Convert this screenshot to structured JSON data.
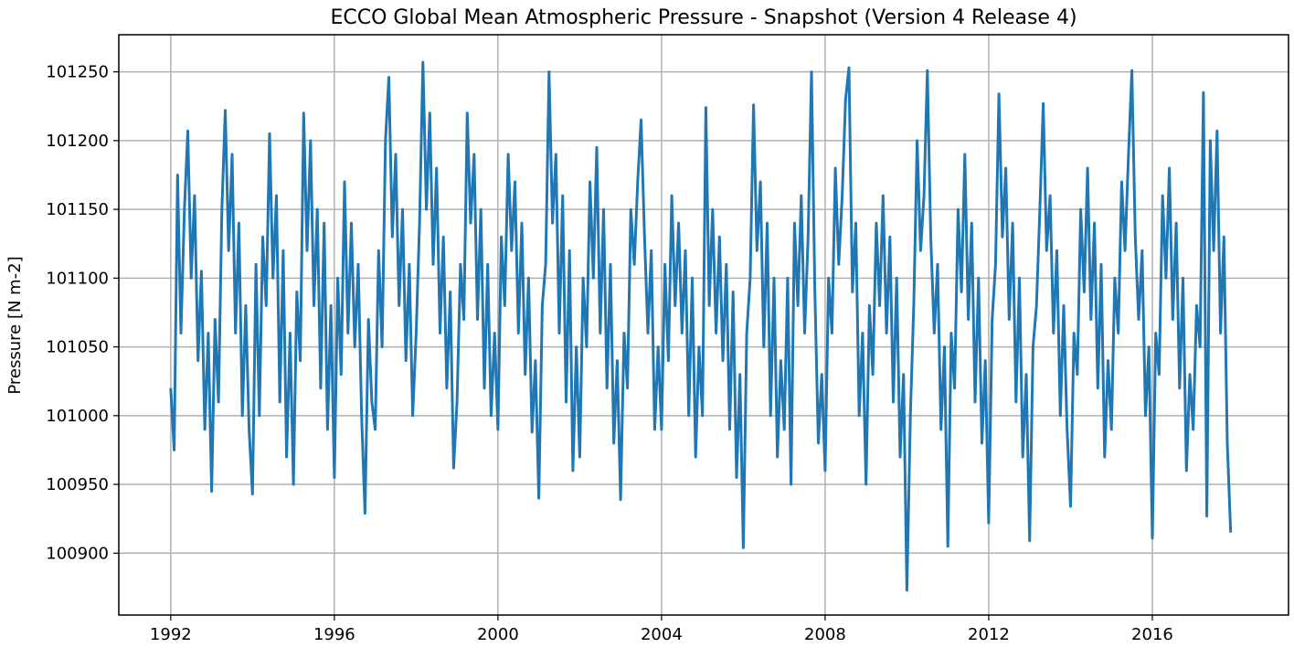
{
  "chart_data": {
    "type": "line",
    "title": "ECCO Global Mean Atmospheric Pressure - Snapshot (Version 4 Release 4)",
    "xlabel": "",
    "ylabel": "Pressure [N m-2]",
    "xlim": [
      1990.73,
      2019.33
    ],
    "ylim": [
      100855,
      101277
    ],
    "x_ticks": [
      "1992",
      "1996",
      "2000",
      "2004",
      "2008",
      "2012",
      "2016"
    ],
    "y_ticks": [
      "100900",
      "100950",
      "101000",
      "101050",
      "101100",
      "101150",
      "101200",
      "101250"
    ],
    "grid": true,
    "line_color": "#1f77b4",
    "series": [
      {
        "year": 1992,
        "monthly": [
          101020,
          100975,
          101175,
          101060,
          101150,
          101207,
          101100,
          101160,
          101040,
          101105,
          100990,
          101060
        ]
      },
      {
        "year": 1993,
        "monthly": [
          100945,
          101070,
          101010,
          101150,
          101222,
          101120,
          101190,
          101060,
          101140,
          101000,
          101080,
          100990
        ]
      },
      {
        "year": 1994,
        "monthly": [
          100943,
          101110,
          101000,
          101130,
          101080,
          101205,
          101100,
          101160,
          101010,
          101120,
          100970,
          101060
        ]
      },
      {
        "year": 1995,
        "monthly": [
          100950,
          101090,
          101040,
          101220,
          101120,
          101200,
          101080,
          101150,
          101020,
          101140,
          100990,
          101080
        ]
      },
      {
        "year": 1996,
        "monthly": [
          100955,
          101100,
          101030,
          101170,
          101060,
          101140,
          101050,
          101110,
          101000,
          100929,
          101070,
          101010
        ]
      },
      {
        "year": 1997,
        "monthly": [
          100990,
          101120,
          101050,
          101200,
          101246,
          101130,
          101190,
          101080,
          101150,
          101040,
          101110,
          101000
        ]
      },
      {
        "year": 1998,
        "monthly": [
          101060,
          101140,
          101257,
          101150,
          101220,
          101110,
          101180,
          101060,
          101130,
          101020,
          101090,
          100962
        ]
      },
      {
        "year": 1999,
        "monthly": [
          101010,
          101110,
          101070,
          101220,
          101140,
          101190,
          101070,
          101150,
          101020,
          101110,
          101000,
          101060
        ]
      },
      {
        "year": 2000,
        "monthly": [
          100990,
          101130,
          101080,
          101190,
          101120,
          101170,
          101060,
          101140,
          101030,
          101100,
          100988,
          101040
        ]
      },
      {
        "year": 2001,
        "monthly": [
          100940,
          101080,
          101110,
          101250,
          101140,
          101190,
          101060,
          101160,
          101010,
          101120,
          100960,
          101050
        ]
      },
      {
        "year": 2002,
        "monthly": [
          100970,
          101100,
          101050,
          101170,
          101100,
          101195,
          101060,
          101150,
          101020,
          101110,
          100980,
          101040
        ]
      },
      {
        "year": 2003,
        "monthly": [
          100939,
          101060,
          101020,
          101150,
          101110,
          101170,
          101215,
          101130,
          101060,
          101120,
          100990,
          101050
        ]
      },
      {
        "year": 2004,
        "monthly": [
          100990,
          101110,
          101040,
          101160,
          101080,
          101140,
          101060,
          101120,
          101000,
          101100,
          100970,
          101050
        ]
      },
      {
        "year": 2005,
        "monthly": [
          101000,
          101224,
          101080,
          101150,
          101060,
          101130,
          101040,
          101110,
          100990,
          101090,
          100955,
          101030
        ]
      },
      {
        "year": 2006,
        "monthly": [
          100904,
          101060,
          101100,
          101226,
          101120,
          101170,
          101050,
          101140,
          101000,
          101100,
          100970,
          101040
        ]
      },
      {
        "year": 2007,
        "monthly": [
          100990,
          101100,
          100950,
          101140,
          101080,
          101160,
          101060,
          101130,
          101250,
          101090,
          100980,
          101030
        ]
      },
      {
        "year": 2008,
        "monthly": [
          100960,
          101100,
          101060,
          101180,
          101110,
          101160,
          101230,
          101253,
          101090,
          101140,
          101000,
          101060
        ]
      },
      {
        "year": 2009,
        "monthly": [
          100950,
          101080,
          101030,
          101140,
          101080,
          101160,
          101060,
          101130,
          101010,
          101100,
          100970,
          101030
        ]
      },
      {
        "year": 2010,
        "monthly": [
          100873,
          101000,
          101080,
          101200,
          101120,
          101160,
          101251,
          101130,
          101060,
          101110,
          100990,
          101050
        ]
      },
      {
        "year": 2011,
        "monthly": [
          100905,
          101060,
          101020,
          101150,
          101090,
          101190,
          101070,
          101140,
          101010,
          101100,
          100980,
          101040
        ]
      },
      {
        "year": 2012,
        "monthly": [
          100922,
          101070,
          101110,
          101234,
          101130,
          101180,
          101070,
          101140,
          101010,
          101100,
          100970,
          101030
        ]
      },
      {
        "year": 2013,
        "monthly": [
          100909,
          101050,
          101080,
          101150,
          101227,
          101120,
          101160,
          101060,
          101120,
          101000,
          101080,
          100990
        ]
      },
      {
        "year": 2014,
        "monthly": [
          100934,
          101060,
          101030,
          101150,
          101090,
          101180,
          101070,
          101140,
          101020,
          101110,
          100970,
          101040
        ]
      },
      {
        "year": 2015,
        "monthly": [
          100990,
          101100,
          101060,
          101170,
          101120,
          101190,
          101251,
          101130,
          101070,
          101120,
          101000,
          101050
        ]
      },
      {
        "year": 2016,
        "monthly": [
          100911,
          101060,
          101030,
          101160,
          101100,
          101180,
          101070,
          101140,
          101020,
          101100,
          100960,
          101030
        ]
      },
      {
        "year": 2017,
        "monthly": [
          100990,
          101080,
          101050,
          101235,
          100927,
          101200,
          101120,
          101207,
          101060,
          101130,
          100980,
          100915
        ]
      }
    ]
  }
}
